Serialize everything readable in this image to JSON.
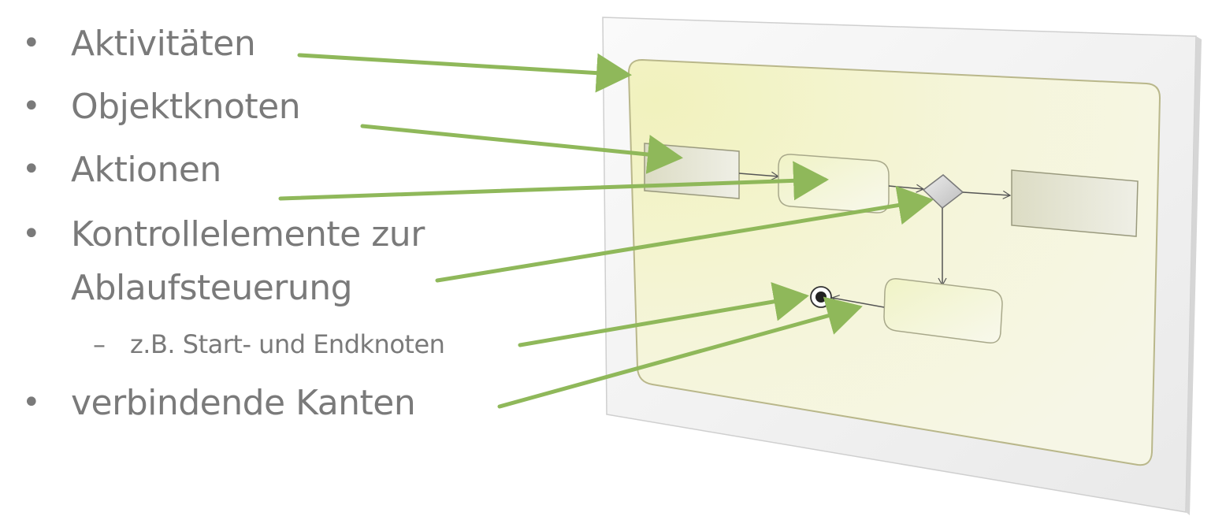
{
  "bullets": [
    {
      "text": "Aktivitäten"
    },
    {
      "text": "Objektknoten"
    },
    {
      "text": "Aktionen"
    },
    {
      "text": "Kontrollelemente zur"
    },
    {
      "text": "Ablaufsteuerung"
    },
    {
      "text": "verbindende Kanten"
    }
  ],
  "sub_bullet": {
    "text": "z.B. Start- und Endknoten"
  },
  "bullet_symbol": "•",
  "sub_symbol": "–",
  "colors": {
    "text": "#7a7a7a",
    "pointer_arrow": "#8fb85a",
    "activity_fill": "#f3f3c8",
    "activity_border": "#b9b78a",
    "action_fill": "#f4f6d8",
    "object_fill": "#e0e0cc",
    "decision_fill": "#d8d8d8",
    "frame_fill": "#f4f4f4"
  }
}
